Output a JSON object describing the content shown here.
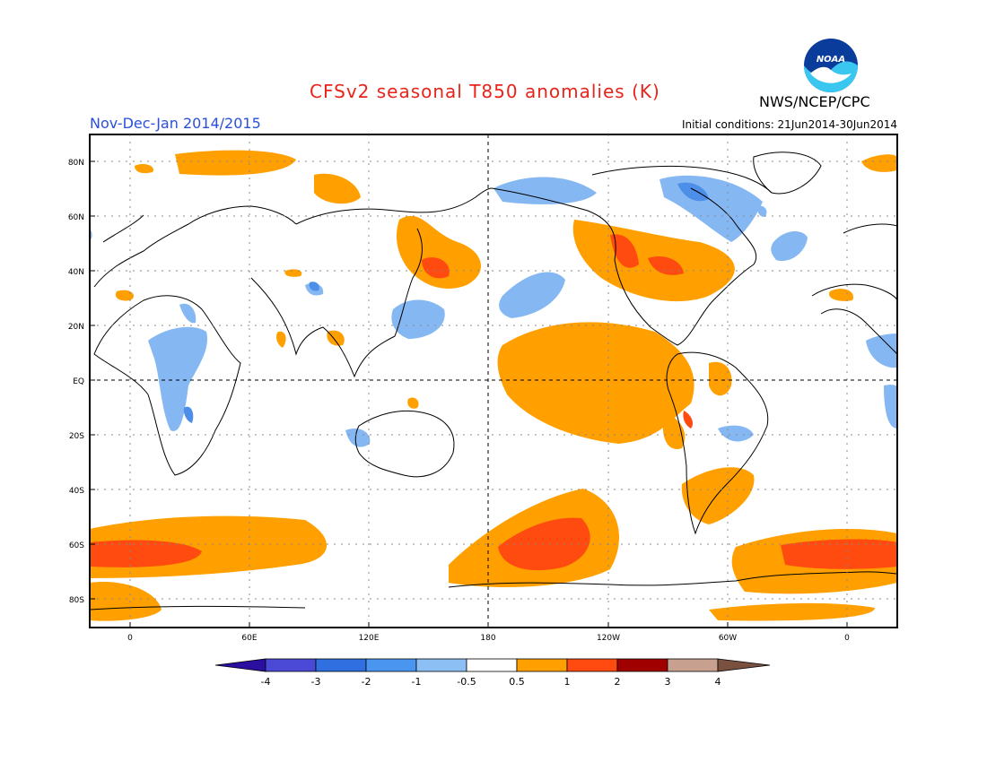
{
  "header": {
    "title": "CFSv2 seasonal T850 anomalies (K)",
    "season": "Nov-Dec-Jan 2014/2015",
    "agency": "NWS/NCEP/CPC",
    "initial_conditions": "Initial conditions: 21Jun2014-30Jun2014",
    "logo_text": "NOAA"
  },
  "map": {
    "lat_labels": [
      "80N",
      "60N",
      "40N",
      "20N",
      "EQ",
      "20S",
      "40S",
      "60S",
      "80S"
    ],
    "lon_labels": [
      "0",
      "60E",
      "120E",
      "180",
      "120W",
      "60W",
      "0"
    ]
  },
  "colorbar": {
    "labels": [
      "-4",
      "-3",
      "-2",
      "-1",
      "-0.5",
      "0.5",
      "1",
      "2",
      "3",
      "4"
    ],
    "colors": [
      "#2a0fa0",
      "#4a4ad6",
      "#2f6fe0",
      "#4a95ef",
      "#8cc0f5",
      "#ffffff",
      "#ffa000",
      "#ff4a10",
      "#a00000",
      "#c8a090",
      "#7a5040"
    ]
  },
  "anomaly_colors": {
    "neg_light": "#85b8f2",
    "neg_mid": "#4d8fe8",
    "pos_light": "#ffa000",
    "pos_mid": "#ff4a10"
  }
}
